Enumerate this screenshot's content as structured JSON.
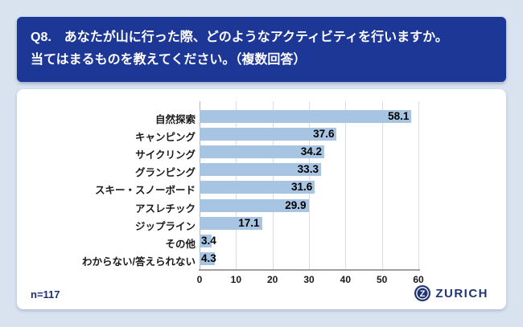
{
  "header": {
    "line1": "Q8.　あなたが山に行った際、どのようなアクティビティを行いますか。",
    "line2": "当てはまるものを教えてください。（複数回答）"
  },
  "footer": {
    "sample_size": "n=117"
  },
  "brand": {
    "name": "ZURICH",
    "emblem": "zurich-z-circle-logo",
    "color": "#1f3575"
  },
  "colors": {
    "page_background": "#d9e3f0",
    "banner_background": "#1d3796",
    "card_background": "#ffffff",
    "bar_fill": "#a7c4e2",
    "gridline": "#dcdcdc",
    "axis_line": "#9e9e9e",
    "value_label": "#000000",
    "sample_size_text": "#1b2e7f"
  },
  "chart_data": {
    "type": "bar",
    "orientation": "horizontal",
    "title": "",
    "xlabel": "",
    "ylabel": "",
    "categories": [
      "自然探索",
      "キャンピング",
      "サイクリング",
      "グランピング",
      "スキー・スノーボード",
      "アスレチック",
      "ジップライン",
      "その他",
      "わからない/答えられない"
    ],
    "values": [
      58.1,
      37.6,
      34.2,
      33.3,
      31.6,
      29.9,
      17.1,
      3.4,
      4.3
    ],
    "xlim": [
      0,
      60
    ],
    "xticks": [
      0,
      10,
      20,
      30,
      40,
      50,
      60
    ],
    "grid": true,
    "value_labels": "inside-end",
    "legend": "none"
  }
}
